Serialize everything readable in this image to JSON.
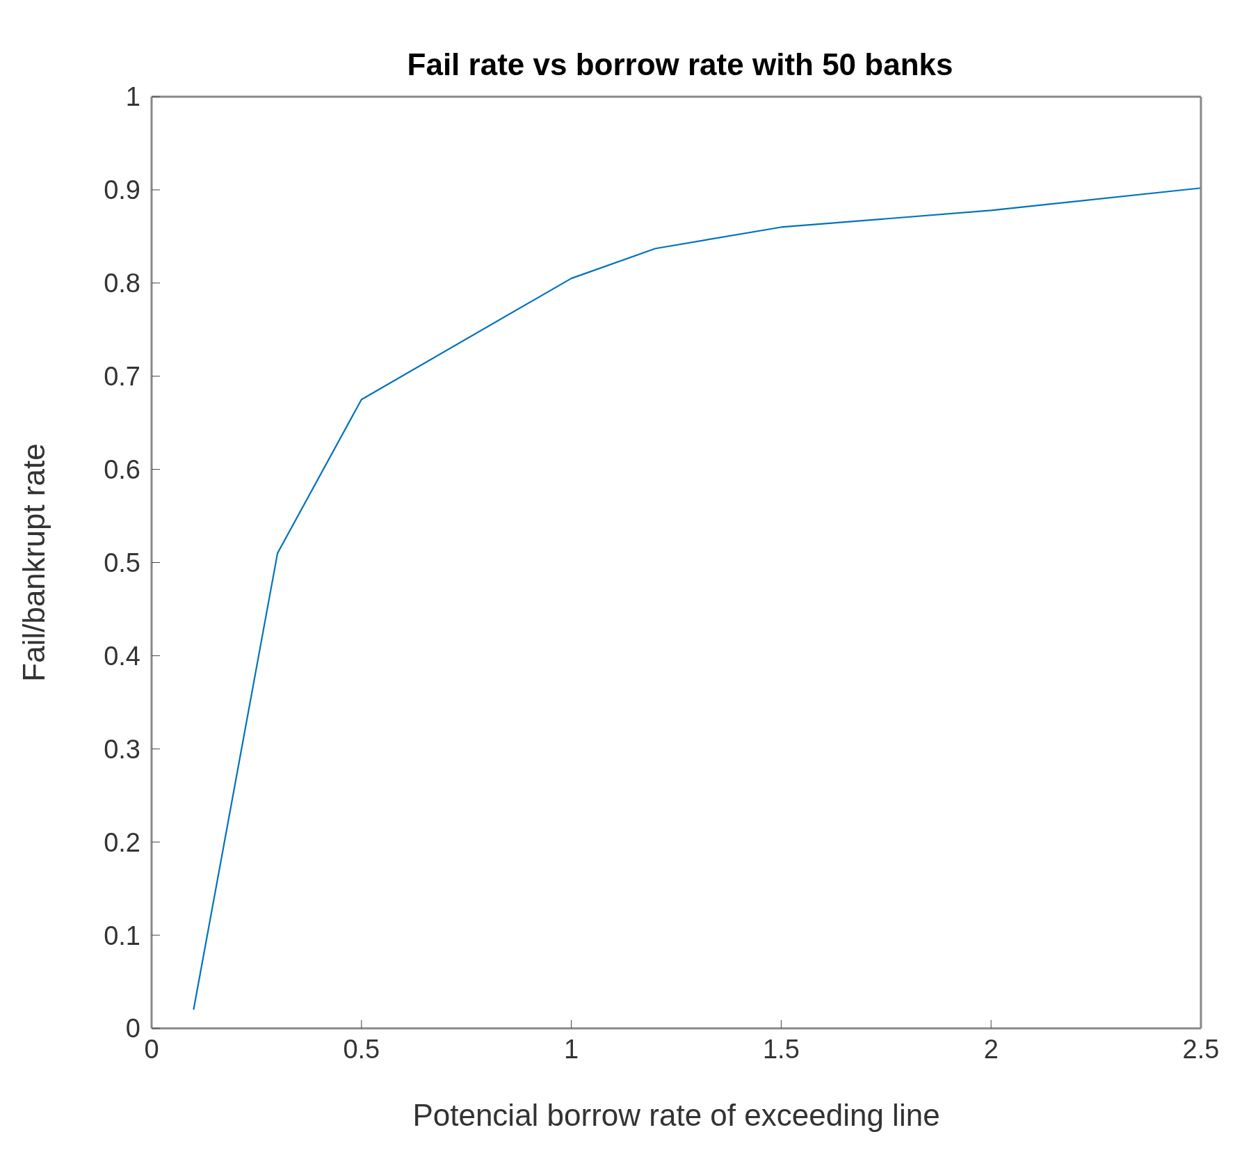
{
  "chart_data": {
    "type": "line",
    "title": "Fail rate vs borrow rate with 50 banks",
    "xlabel": "Potencial borrow rate of exceeding line",
    "ylabel": "Fail/bankrupt rate",
    "x": [
      0.1,
      0.3,
      0.5,
      1.0,
      1.2,
      1.5,
      2.0,
      2.5
    ],
    "series": [
      {
        "color": "#0072bd",
        "values": [
          0.02,
          0.51,
          0.675,
          0.805,
          0.837,
          0.86,
          0.878,
          0.902
        ]
      }
    ],
    "xlim": [
      0,
      2.5
    ],
    "xticks": [
      0,
      0.5,
      1,
      1.5,
      2,
      2.5
    ],
    "ylim": [
      0,
      1
    ],
    "yticks": [
      0,
      0.1,
      0.2,
      0.3,
      0.4,
      0.5,
      0.6,
      0.7,
      0.8,
      0.9,
      1
    ],
    "marker": "none",
    "line_style": "solid"
  }
}
